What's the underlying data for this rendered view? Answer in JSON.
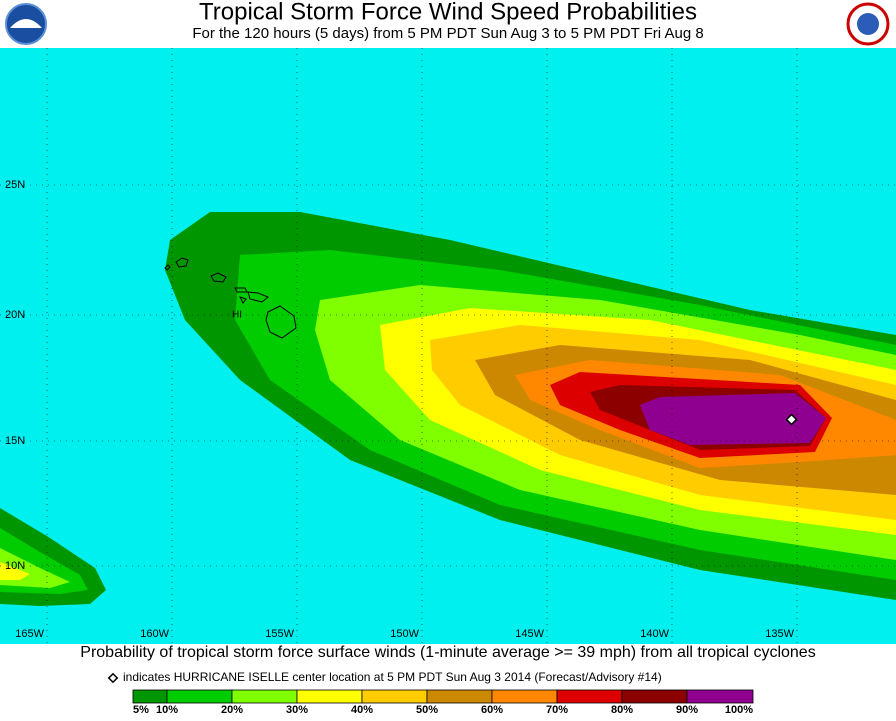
{
  "header": {
    "title": "Tropical Storm Force Wind Speed Probabilities",
    "subtitle": "For the 120 hours (5 days) from 5 PM PDT Sun Aug 3 to 5 PM PDT Fri Aug 8"
  },
  "map": {
    "latitude_labels": [
      "25N",
      "20N",
      "15N",
      "10N"
    ],
    "longitude_labels": [
      "165W",
      "160W",
      "155W",
      "150W",
      "145W",
      "140W",
      "135W"
    ],
    "island_label": "HI"
  },
  "caption": {
    "line1": "Probability of tropical storm force surface winds (1-minute average >= 39 mph) from all tropical cyclones",
    "line2": "indicates HURRICANE ISELLE center location at 5 PM PDT Sun Aug 3 2014 (Forecast/Advisory #14)"
  },
  "legend": {
    "labels": [
      "5%",
      "10%",
      "20%",
      "30%",
      "40%",
      "50%",
      "60%",
      "70%",
      "80%",
      "90%",
      "100%"
    ],
    "colors": [
      "#009600",
      "#00cc00",
      "#80ff00",
      "#ffff00",
      "#ffcc00",
      "#cc8800",
      "#ff8800",
      "#dd0000",
      "#8c0000",
      "#900090"
    ]
  }
}
